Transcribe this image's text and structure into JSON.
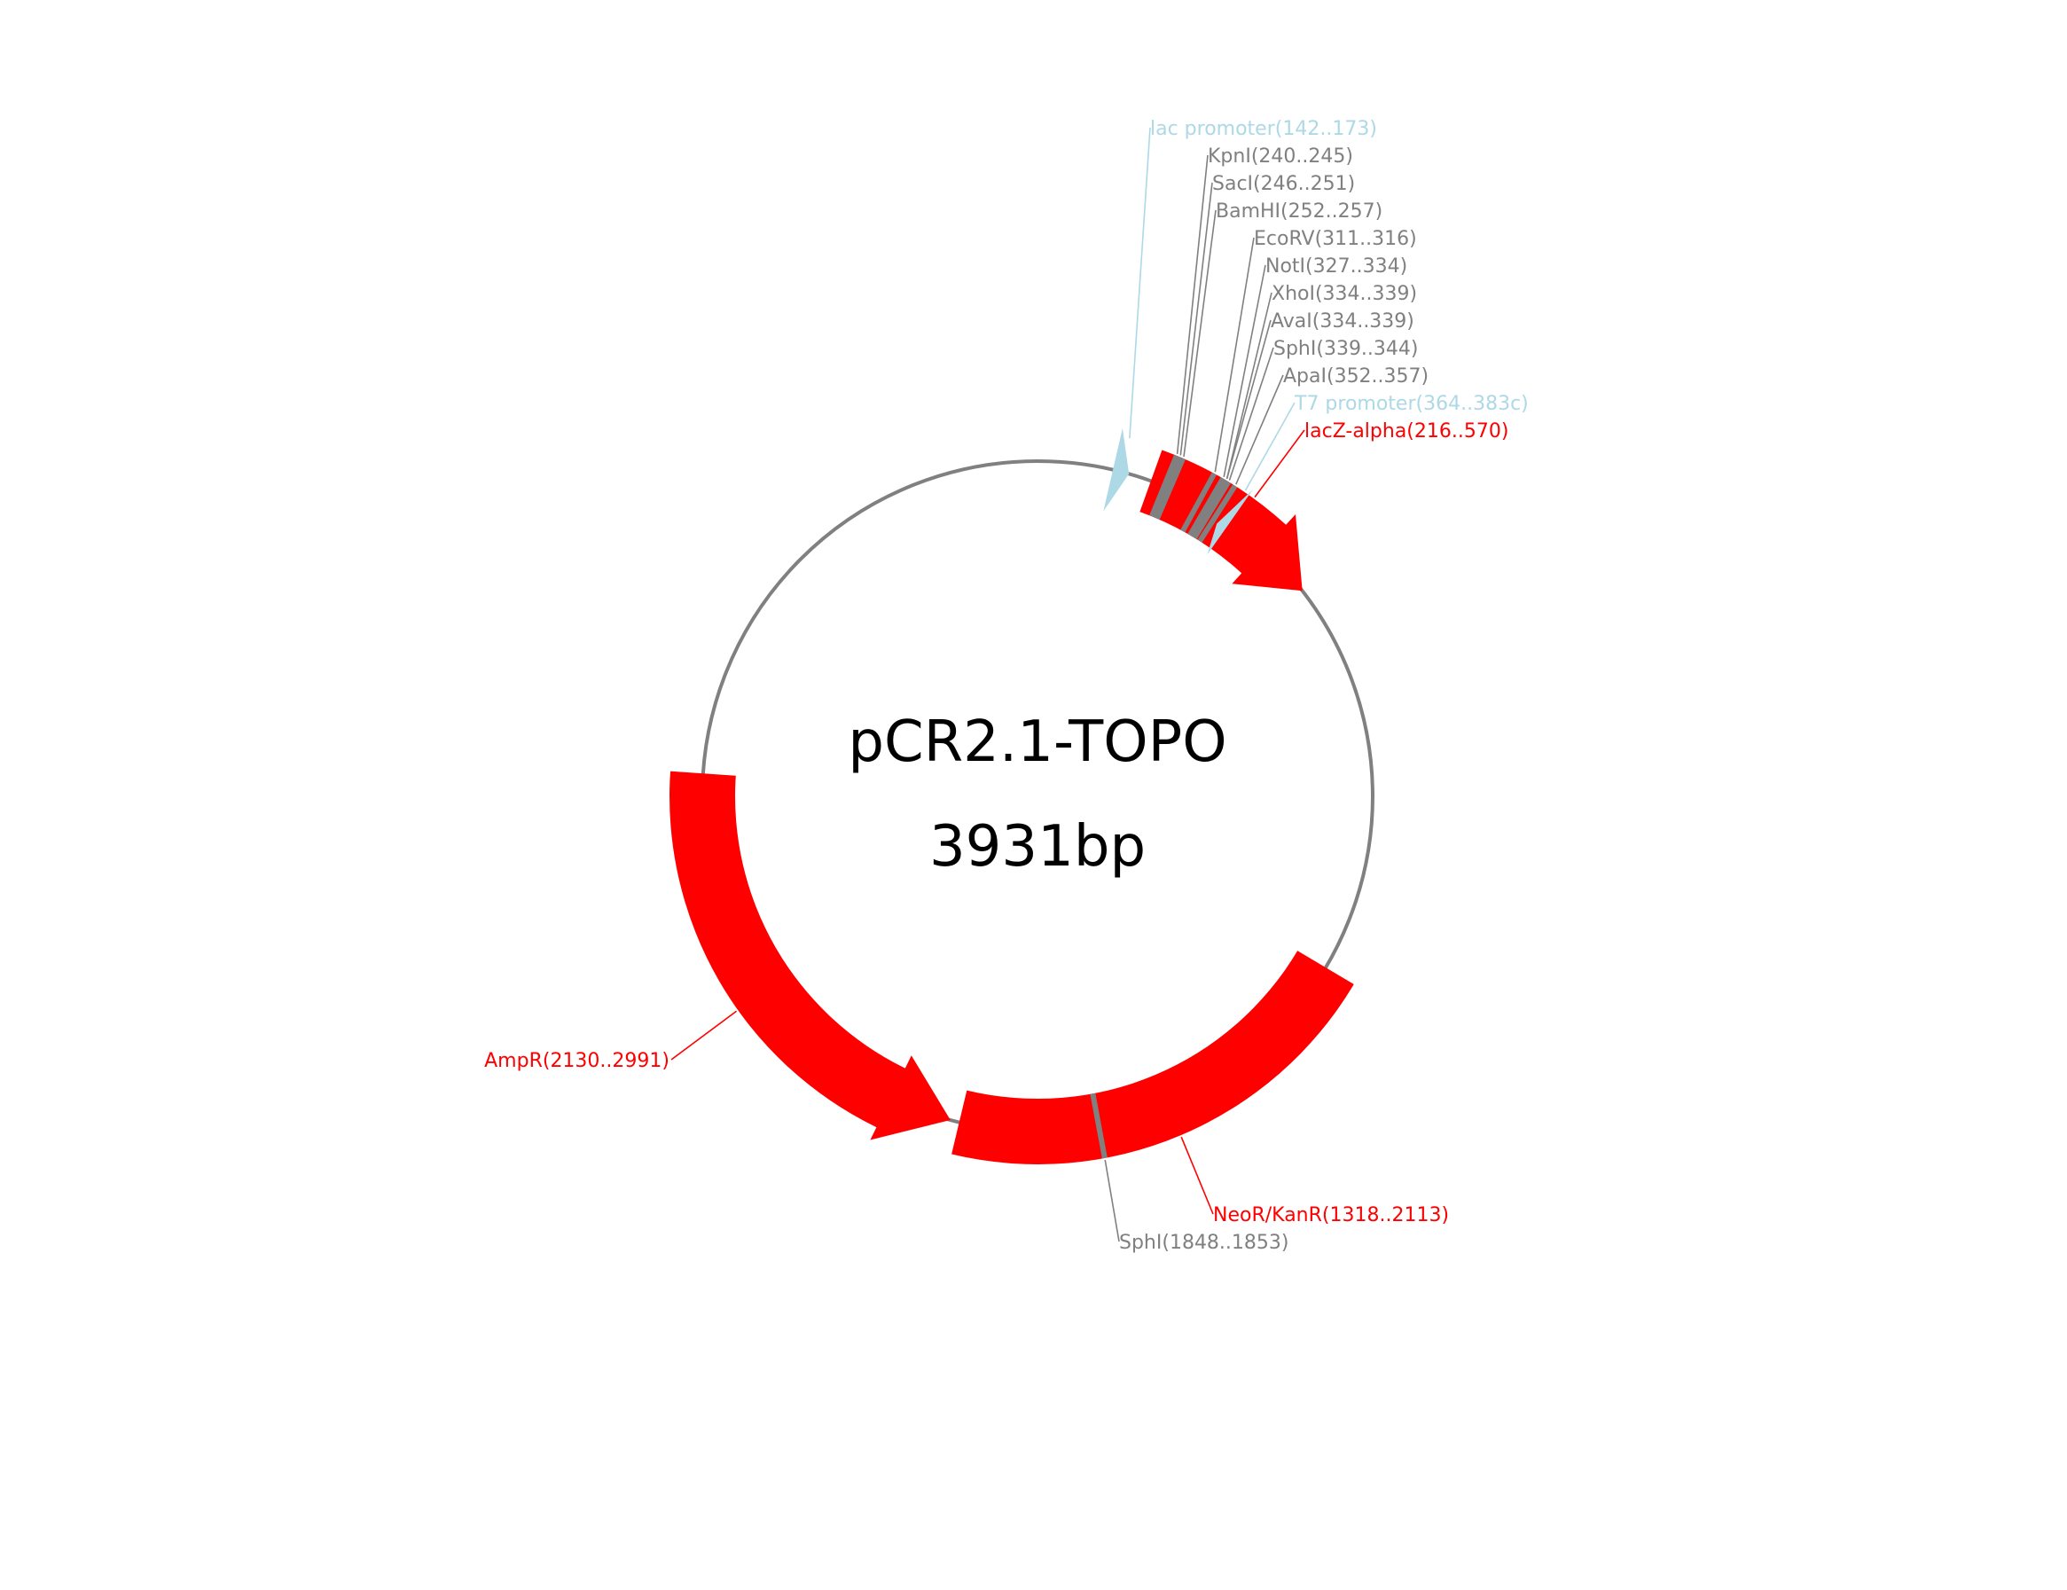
{
  "plasmid": {
    "name": "pCR2.1-TOPO",
    "size_label": "3931bp",
    "length": 3931,
    "backbone_color": "#808080"
  },
  "colors": {
    "gene": "#ff0000",
    "promoter": "#add8e6",
    "site": "#808080"
  },
  "features": [
    {
      "id": "lac-promoter",
      "label": "lac promoter(142..173)",
      "type": "promoter",
      "start": 142,
      "end": 173,
      "strand": 1,
      "color": "#add8e6"
    },
    {
      "id": "lacz-alpha",
      "label": "lacZ-alpha(216..570)",
      "type": "gene",
      "start": 216,
      "end": 570,
      "strand": 1,
      "color": "#ff0000"
    },
    {
      "id": "t7-promoter",
      "label": "T7 promoter(364..383c)",
      "type": "promoter",
      "start": 364,
      "end": 383,
      "strand": -1,
      "color": "#add8e6"
    },
    {
      "id": "neor-kanr",
      "label": "NeoR/KanR(1318..2113)",
      "type": "gene",
      "start": 1318,
      "end": 2113,
      "strand": 1,
      "color": "#ff0000"
    },
    {
      "id": "ampr",
      "label": "AmpR(2130..2991)",
      "type": "gene",
      "start": 2130,
      "end": 2991,
      "strand": -1,
      "color": "#ff0000"
    }
  ],
  "sites": [
    {
      "id": "kpni",
      "label": "KpnI(240..245)",
      "start": 240,
      "end": 245
    },
    {
      "id": "saci",
      "label": "SacI(246..251)",
      "start": 246,
      "end": 251
    },
    {
      "id": "bamhi",
      "label": "BamHI(252..257)",
      "start": 252,
      "end": 257
    },
    {
      "id": "ecorv",
      "label": "EcoRV(311..316)",
      "start": 311,
      "end": 316
    },
    {
      "id": "noti",
      "label": "NotI(327..334)",
      "start": 327,
      "end": 334
    },
    {
      "id": "xhoi",
      "label": "XhoI(334..339)",
      "start": 334,
      "end": 339
    },
    {
      "id": "avai",
      "label": "AvaI(334..339)",
      "start": 334,
      "end": 339
    },
    {
      "id": "sphi-1",
      "label": "SphI(339..344)",
      "start": 339,
      "end": 344
    },
    {
      "id": "apai",
      "label": "ApaI(352..357)",
      "start": 352,
      "end": 357
    },
    {
      "id": "sphi-2",
      "label": "SphI(1848..1853)",
      "start": 1848,
      "end": 1853
    }
  ],
  "top_label_order": [
    "lac-promoter",
    "kpni",
    "saci",
    "bamhi",
    "ecorv",
    "noti",
    "xhoi",
    "avai",
    "sphi-1",
    "apai",
    "t7-promoter",
    "lacz-alpha"
  ]
}
